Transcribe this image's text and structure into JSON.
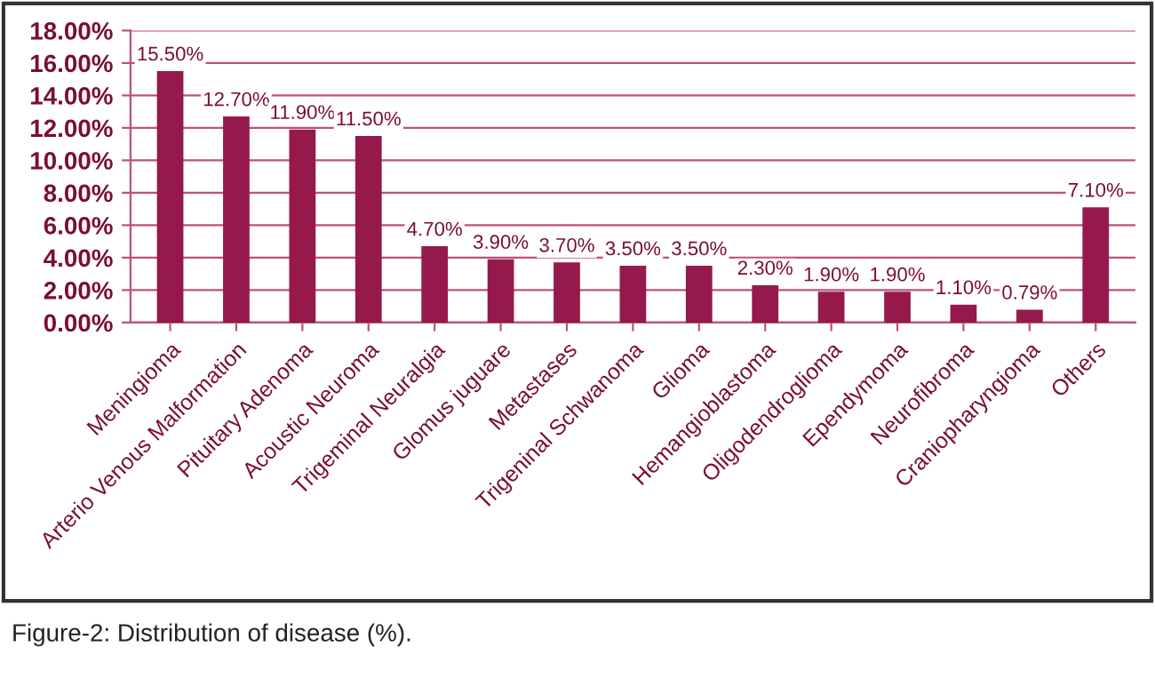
{
  "chart_data": {
    "type": "bar",
    "categories": [
      "Meningioma",
      "Arterio Venous Malformation",
      "Pituitary Adenoma",
      "Acoustic Neuroma",
      "Trigeminal Neuralgia",
      "Glomus juguare",
      "Metastases",
      "Trigeninal Schwanoma",
      "Glioma",
      "Hemangioblastoma",
      "Oligodendroglioma",
      "Ependymoma",
      "Neurofibroma",
      "Craniopharyngioma",
      "Others"
    ],
    "values": [
      15.5,
      12.7,
      11.9,
      11.5,
      4.7,
      3.9,
      3.7,
      3.5,
      3.5,
      2.3,
      1.9,
      1.9,
      1.1,
      0.79,
      7.1
    ],
    "value_labels": [
      "15.50%",
      "12.70%",
      "11.90%",
      "11.50%",
      "4.70%",
      "3.90%",
      "3.70%",
      "3.50%",
      "3.50%",
      "2.30%",
      "1.90%",
      "1.90%",
      "1.10%",
      "0.79%",
      "7.10%"
    ],
    "color": "#951a4b",
    "ylim": [
      0,
      18
    ],
    "yticks": [
      {
        "value": 0,
        "label": "0.00%"
      },
      {
        "value": 2,
        "label": "2.00%"
      },
      {
        "value": 4,
        "label": "4.00%"
      },
      {
        "value": 6,
        "label": "6.00%"
      },
      {
        "value": 8,
        "label": "8.00%"
      },
      {
        "value": 10,
        "label": "10.00%"
      },
      {
        "value": 12,
        "label": "12.00%"
      },
      {
        "value": 14,
        "label": "14.00%"
      },
      {
        "value": 16,
        "label": "16.00%"
      },
      {
        "value": 18,
        "label": "18.00%"
      }
    ],
    "grid": "y",
    "legend": false,
    "annotations": [
      "Figure-2: Distribution of disease (%)."
    ]
  }
}
